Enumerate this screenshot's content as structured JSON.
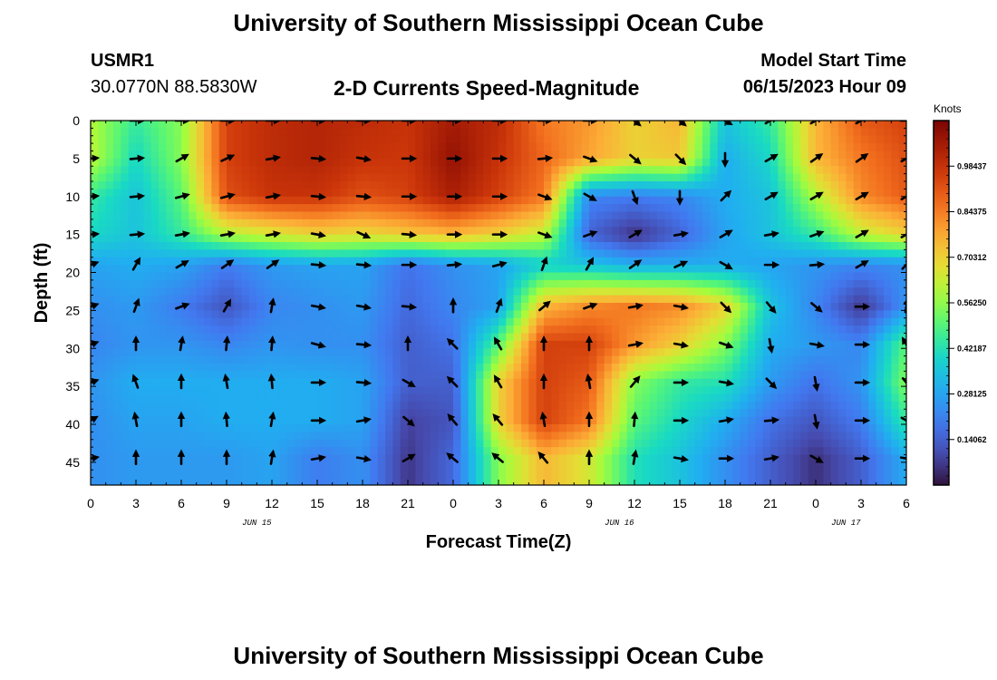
{
  "header": {
    "title": "University of Southern Mississippi Ocean Cube",
    "station": "USMR1",
    "coords": "30.0770N  88.5830W",
    "subtitle": "2-D Currents Speed-Magnitude",
    "model_start_label": "Model Start Time",
    "model_start_value": "06/15/2023 Hour 09"
  },
  "footer": {
    "title": "University of Southern Mississippi Ocean Cube"
  },
  "colorbar": {
    "units": "Knots",
    "min": 0.0,
    "max": 1.125,
    "labels": [
      "0.98437",
      "0.84375",
      "0.70312",
      "0.56250",
      "0.42187",
      "0.28125",
      "0.14062"
    ],
    "label_values": [
      0.984375,
      0.84375,
      0.703125,
      0.5625,
      0.421875,
      0.28125,
      0.140625
    ]
  },
  "chart_data": {
    "type": "heatmap",
    "title": "2-D Currents Speed-Magnitude",
    "xlabel": "Forecast Time(Z)",
    "ylabel": "Depth (ft)",
    "x_range_hours": [
      0,
      54
    ],
    "y_range_ft": [
      0,
      48
    ],
    "x_ticks": [
      0,
      3,
      6,
      9,
      12,
      15,
      18,
      21,
      24,
      27,
      30,
      33,
      36,
      39,
      42,
      45,
      48,
      51,
      54
    ],
    "x_tick_labels": [
      "0",
      "3",
      "6",
      "9",
      "12",
      "15",
      "18",
      "21",
      "0",
      "3",
      "6",
      "9",
      "12",
      "15",
      "18",
      "21",
      "0",
      "3",
      "6"
    ],
    "y_ticks": [
      0,
      5,
      10,
      15,
      20,
      25,
      30,
      35,
      40,
      45
    ],
    "y_tick_labels": [
      "0",
      "5",
      "10",
      "15",
      "20",
      "25",
      "30",
      "35",
      "40",
      "45"
    ],
    "date_labels": [
      {
        "hour": 11,
        "text": "JUN 15"
      },
      {
        "hour": 35,
        "text": "JUN 16"
      },
      {
        "hour": 50,
        "text": "JUN 17"
      }
    ],
    "arrow_times": [
      0,
      3,
      6,
      9,
      12,
      15,
      18,
      21,
      24,
      27,
      30,
      33,
      36,
      39,
      42,
      45,
      48,
      51,
      54
    ],
    "arrow_depths": [
      0,
      5,
      10,
      15,
      19,
      24.5,
      29.5,
      34.5,
      39.5,
      44.5
    ],
    "speed_grid": [
      [
        0.6,
        0.45,
        0.55,
        0.95,
        1.0,
        1.02,
        1.0,
        0.98,
        1.05,
        1.0,
        0.85,
        0.8,
        0.7,
        0.75,
        0.35,
        0.45,
        0.75,
        0.9,
        0.95
      ],
      [
        0.62,
        0.4,
        0.55,
        0.95,
        1.0,
        1.02,
        0.98,
        0.97,
        1.08,
        0.98,
        0.88,
        0.78,
        0.7,
        0.72,
        0.3,
        0.4,
        0.75,
        0.85,
        0.92
      ],
      [
        0.45,
        0.35,
        0.5,
        0.92,
        0.98,
        0.98,
        0.92,
        0.95,
        1.04,
        0.95,
        0.85,
        0.22,
        0.2,
        0.22,
        0.3,
        0.35,
        0.6,
        0.82,
        0.9
      ],
      [
        0.4,
        0.35,
        0.45,
        0.6,
        0.65,
        0.7,
        0.68,
        0.72,
        0.75,
        0.7,
        0.62,
        0.15,
        0.05,
        0.15,
        0.28,
        0.35,
        0.45,
        0.62,
        0.7
      ],
      [
        0.28,
        0.3,
        0.28,
        0.2,
        0.26,
        0.28,
        0.28,
        0.18,
        0.24,
        0.28,
        0.38,
        0.35,
        0.3,
        0.3,
        0.3,
        0.28,
        0.25,
        0.22,
        0.24
      ],
      [
        0.24,
        0.26,
        0.2,
        0.12,
        0.22,
        0.24,
        0.26,
        0.16,
        0.22,
        0.28,
        0.75,
        0.82,
        0.85,
        0.82,
        0.7,
        0.35,
        0.22,
        0.06,
        0.25
      ],
      [
        0.22,
        0.25,
        0.25,
        0.22,
        0.25,
        0.24,
        0.24,
        0.14,
        0.18,
        0.5,
        0.95,
        0.95,
        0.8,
        0.7,
        0.55,
        0.3,
        0.26,
        0.22,
        0.5
      ],
      [
        0.25,
        0.3,
        0.3,
        0.3,
        0.3,
        0.3,
        0.28,
        0.14,
        0.14,
        0.7,
        0.95,
        0.9,
        0.55,
        0.45,
        0.42,
        0.26,
        0.18,
        0.25,
        0.55
      ],
      [
        0.24,
        0.28,
        0.28,
        0.3,
        0.3,
        0.3,
        0.28,
        0.08,
        0.12,
        0.7,
        0.95,
        0.85,
        0.5,
        0.4,
        0.3,
        0.18,
        0.12,
        0.2,
        0.45
      ],
      [
        0.24,
        0.26,
        0.26,
        0.26,
        0.28,
        0.2,
        0.24,
        0.06,
        0.16,
        0.55,
        0.75,
        0.65,
        0.42,
        0.35,
        0.24,
        0.14,
        0.05,
        0.14,
        0.3
      ]
    ],
    "direction_grid": [
      [
        60,
        90,
        90,
        90,
        90,
        90,
        90,
        90,
        90,
        90,
        90,
        90,
        130,
        130,
        120,
        60,
        60,
        60,
        90
      ],
      [
        85,
        85,
        60,
        65,
        80,
        95,
        100,
        90,
        90,
        90,
        85,
        110,
        130,
        135,
        180,
        60,
        55,
        55,
        60
      ],
      [
        85,
        85,
        75,
        75,
        80,
        95,
        95,
        90,
        90,
        90,
        110,
        120,
        160,
        180,
        45,
        60,
        60,
        60,
        60
      ],
      [
        85,
        85,
        80,
        80,
        80,
        100,
        115,
        95,
        90,
        90,
        110,
        70,
        60,
        80,
        60,
        80,
        70,
        60,
        60
      ],
      [
        70,
        30,
        60,
        55,
        55,
        95,
        95,
        90,
        85,
        75,
        20,
        30,
        55,
        65,
        120,
        90,
        85,
        60,
        45
      ],
      [
        70,
        20,
        70,
        30,
        10,
        100,
        100,
        95,
        0,
        20,
        50,
        70,
        80,
        100,
        135,
        140,
        130,
        90,
        10
      ],
      [
        70,
        0,
        10,
        5,
        5,
        105,
        95,
        0,
        315,
        330,
        0,
        0,
        80,
        100,
        110,
        170,
        100,
        90,
        330
      ],
      [
        70,
        340,
        0,
        350,
        355,
        90,
        95,
        120,
        315,
        330,
        0,
        350,
        40,
        90,
        100,
        135,
        170,
        90,
        140
      ],
      [
        60,
        350,
        0,
        355,
        10,
        90,
        80,
        130,
        320,
        320,
        350,
        0,
        5,
        90,
        80,
        85,
        170,
        90,
        120
      ],
      [
        80,
        0,
        0,
        0,
        10,
        80,
        100,
        60,
        310,
        310,
        320,
        0,
        10,
        100,
        90,
        80,
        120,
        90,
        100
      ]
    ]
  }
}
